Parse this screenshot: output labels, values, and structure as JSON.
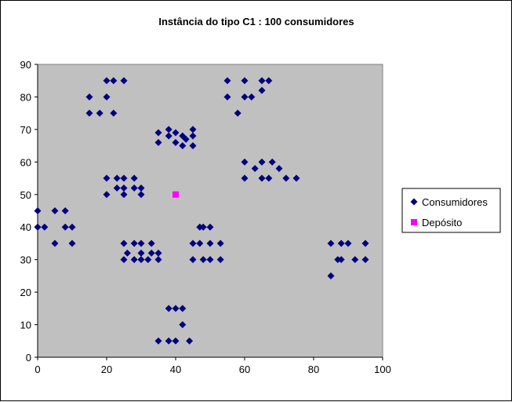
{
  "chart_data": {
    "type": "scatter",
    "title": "Instância do tipo C1 : 100 consumidores",
    "xlabel": "",
    "ylabel": "",
    "xlim": [
      0,
      100
    ],
    "ylim": [
      0,
      90
    ],
    "x_ticks": [
      0,
      20,
      40,
      60,
      80,
      100
    ],
    "y_ticks": [
      0,
      10,
      20,
      30,
      40,
      50,
      60,
      70,
      80,
      90
    ],
    "grid": false,
    "plot_background": "#c0c0c0",
    "legend_position": "right",
    "series": [
      {
        "name": "Consumidores",
        "marker": "diamond",
        "color": "#000080",
        "points": [
          [
            0,
            45
          ],
          [
            0,
            40
          ],
          [
            2,
            40
          ],
          [
            5,
            45
          ],
          [
            5,
            35
          ],
          [
            8,
            45
          ],
          [
            8,
            40
          ],
          [
            10,
            40
          ],
          [
            10,
            35
          ],
          [
            15,
            80
          ],
          [
            15,
            75
          ],
          [
            18,
            75
          ],
          [
            20,
            85
          ],
          [
            20,
            80
          ],
          [
            22,
            85
          ],
          [
            22,
            75
          ],
          [
            25,
            85
          ],
          [
            20,
            55
          ],
          [
            20,
            50
          ],
          [
            23,
            55
          ],
          [
            23,
            52
          ],
          [
            25,
            55
          ],
          [
            25,
            52
          ],
          [
            25,
            50
          ],
          [
            28,
            55
          ],
          [
            28,
            52
          ],
          [
            30,
            52
          ],
          [
            30,
            50
          ],
          [
            25,
            35
          ],
          [
            25,
            30
          ],
          [
            26,
            32
          ],
          [
            28,
            35
          ],
          [
            28,
            30
          ],
          [
            30,
            35
          ],
          [
            30,
            32
          ],
          [
            30,
            30
          ],
          [
            32,
            30
          ],
          [
            33,
            35
          ],
          [
            33,
            32
          ],
          [
            35,
            32
          ],
          [
            35,
            30
          ],
          [
            35,
            69
          ],
          [
            35,
            66
          ],
          [
            38,
            70
          ],
          [
            38,
            68
          ],
          [
            40,
            69
          ],
          [
            40,
            66
          ],
          [
            42,
            68
          ],
          [
            42,
            65
          ],
          [
            43,
            67
          ],
          [
            45,
            70
          ],
          [
            45,
            68
          ],
          [
            45,
            65
          ],
          [
            38,
            15
          ],
          [
            40,
            15
          ],
          [
            42,
            15
          ],
          [
            42,
            10
          ],
          [
            35,
            5
          ],
          [
            38,
            5
          ],
          [
            40,
            5
          ],
          [
            44,
            5
          ],
          [
            45,
            35
          ],
          [
            45,
            30
          ],
          [
            47,
            40
          ],
          [
            47,
            35
          ],
          [
            48,
            40
          ],
          [
            48,
            30
          ],
          [
            50,
            40
          ],
          [
            50,
            35
          ],
          [
            50,
            30
          ],
          [
            53,
            35
          ],
          [
            53,
            30
          ],
          [
            55,
            85
          ],
          [
            55,
            80
          ],
          [
            58,
            75
          ],
          [
            60,
            85
          ],
          [
            60,
            80
          ],
          [
            62,
            80
          ],
          [
            65,
            85
          ],
          [
            65,
            82
          ],
          [
            67,
            85
          ],
          [
            60,
            60
          ],
          [
            60,
            55
          ],
          [
            63,
            58
          ],
          [
            65,
            60
          ],
          [
            65,
            55
          ],
          [
            67,
            55
          ],
          [
            68,
            60
          ],
          [
            70,
            58
          ],
          [
            72,
            55
          ],
          [
            75,
            55
          ],
          [
            85,
            35
          ],
          [
            85,
            25
          ],
          [
            87,
            30
          ],
          [
            88,
            35
          ],
          [
            88,
            30
          ],
          [
            90,
            35
          ],
          [
            92,
            30
          ],
          [
            95,
            35
          ],
          [
            95,
            30
          ]
        ]
      },
      {
        "name": "Depósito",
        "marker": "square",
        "color": "#ff00ff",
        "points": [
          [
            40,
            50
          ]
        ]
      }
    ]
  }
}
